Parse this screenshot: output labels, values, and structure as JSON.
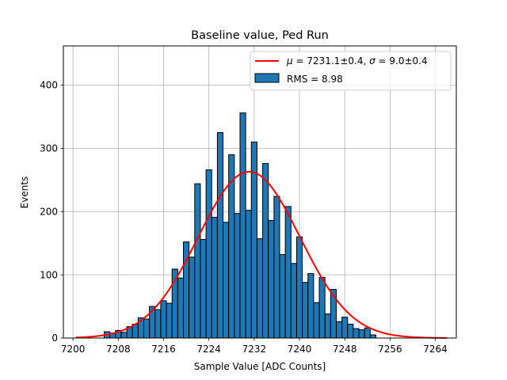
{
  "chart_data": {
    "type": "bar",
    "title": "Baseline value, Ped Run",
    "xlabel": "Sample Value [ADC Counts]",
    "ylabel": "Events",
    "xlim": [
      7198.3,
      7267.7
    ],
    "ylim": [
      0,
      462
    ],
    "xticks": [
      7200,
      7208,
      7216,
      7224,
      7232,
      7240,
      7248,
      7256,
      7264
    ],
    "yticks": [
      0,
      100,
      200,
      300,
      400
    ],
    "grid": true,
    "legend_position": "top-right",
    "bin_start": 7205.5,
    "bin_width": 1,
    "histogram": {
      "name": "RMS = 8.98",
      "color": "#1f77b4",
      "edge_color": "#000000",
      "counts": [
        10,
        8,
        12,
        9,
        18,
        22,
        32,
        30,
        50,
        45,
        59,
        55,
        109,
        95,
        152,
        128,
        244,
        156,
        266,
        191,
        325,
        183,
        290,
        197,
        356,
        202,
        310,
        157,
        276,
        186,
        224,
        132,
        208,
        118,
        160,
        88,
        102,
        56,
        96,
        38,
        77,
        26,
        33,
        22,
        15,
        13,
        16,
        5
      ]
    },
    "fit": {
      "name": "$\\mu = 7231.1\\pm0.4$, $\\sigma = 9.0\\pm0.4$",
      "name_parts": [
        "μ",
        " = 7231.1±0.4, ",
        "σ",
        " = 9.0±0.4"
      ],
      "color": "#ff0000",
      "type": "gaussian",
      "mu": 7231.1,
      "sigma": 9.0,
      "amplitude": 263,
      "x_range": [
        7200.5,
        7266.0
      ]
    }
  }
}
